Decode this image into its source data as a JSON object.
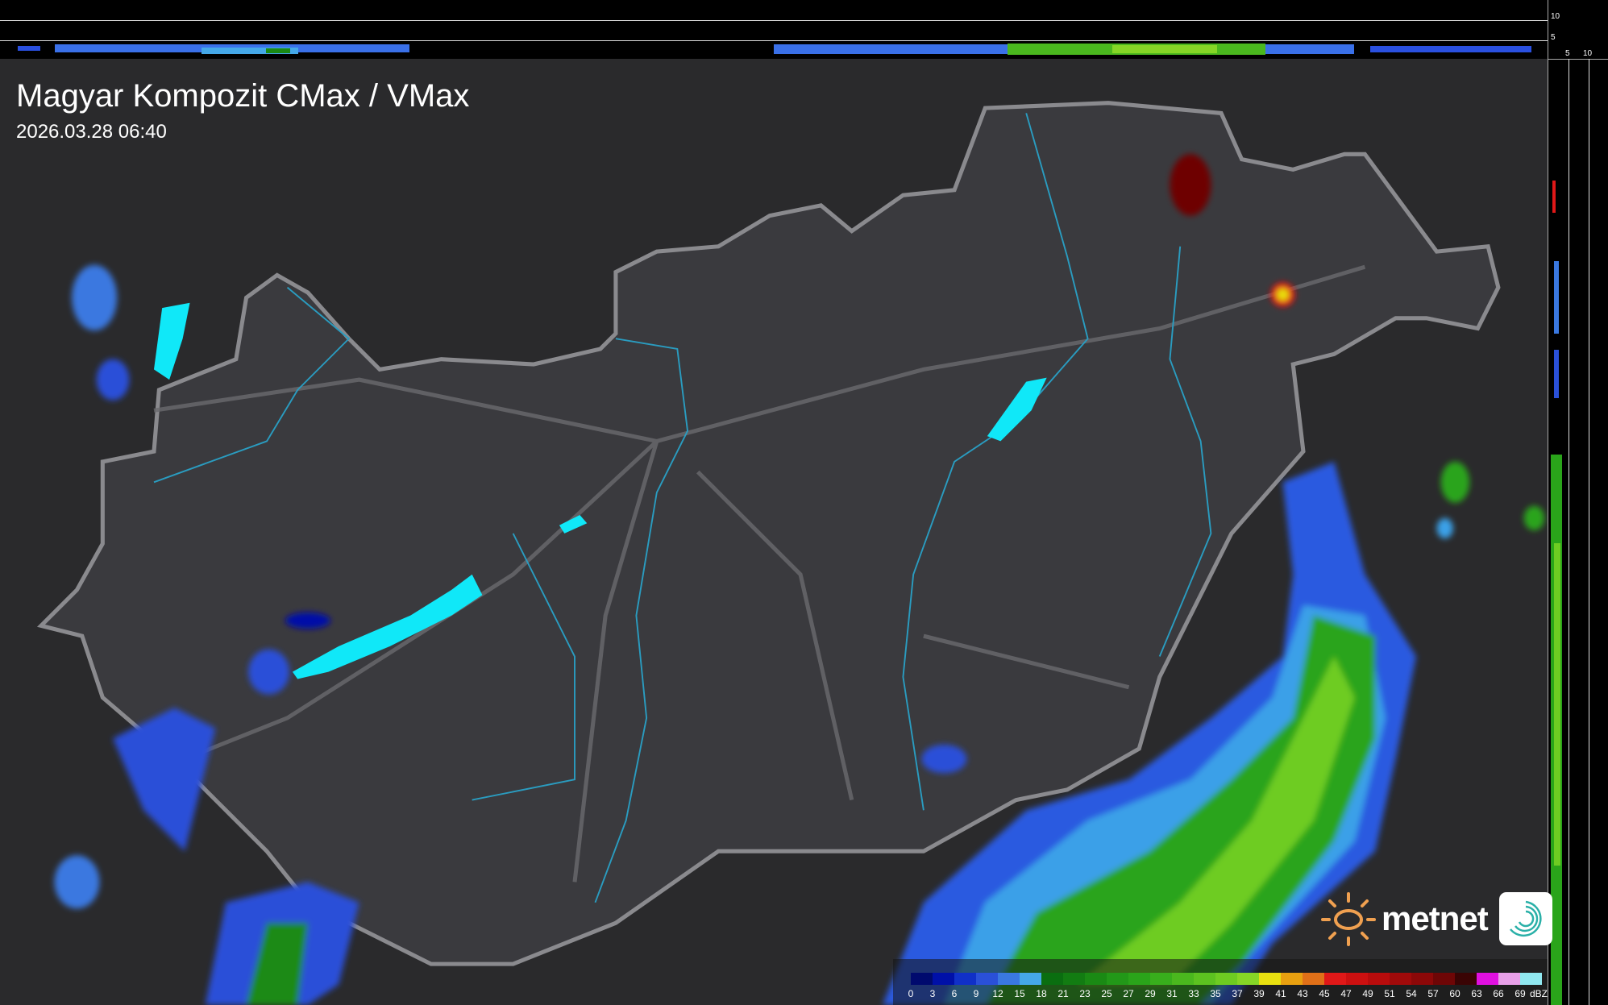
{
  "header": {
    "title": "Magyar Kompozit CMax / VMax",
    "timestamp": "2026.03.28 06:40"
  },
  "profile_axes": {
    "top_labels": [
      "10",
      "5"
    ],
    "right_labels": [
      "5",
      "10"
    ]
  },
  "legend": {
    "unit": "dBZ",
    "labels": [
      "0",
      "3",
      "6",
      "9",
      "12",
      "15",
      "18",
      "21",
      "23",
      "25",
      "27",
      "29",
      "31",
      "33",
      "35",
      "37",
      "39",
      "41",
      "43",
      "45",
      "47",
      "49",
      "51",
      "54",
      "57",
      "60",
      "63",
      "66",
      "69"
    ],
    "colors": [
      "#000a6e",
      "#0010a8",
      "#1030c8",
      "#2a50d8",
      "#3a78e0",
      "#45a8e8",
      "#0a6e10",
      "#127c12",
      "#1a8a14",
      "#229818",
      "#2aa41a",
      "#38ae1c",
      "#4ab81e",
      "#5cc220",
      "#6ecc22",
      "#86d626",
      "#e8e010",
      "#e8a010",
      "#e07018",
      "#e01818",
      "#cc1010",
      "#b80c0c",
      "#a00a0a",
      "#8c0808",
      "#6e0606",
      "#3a0404",
      "#e010e0",
      "#e8a0e8",
      "#90e8f0"
    ]
  },
  "logo": {
    "brand": "metnet",
    "sun_color": "#f0a050",
    "swirl_color": "#2ab0a8"
  },
  "map": {
    "border_color": "#8a8a8e",
    "river_color": "#2a9cc0",
    "lake_color": "#10e8f8",
    "country_fill": "#3a3a3e",
    "background": "#2a2a2c"
  }
}
